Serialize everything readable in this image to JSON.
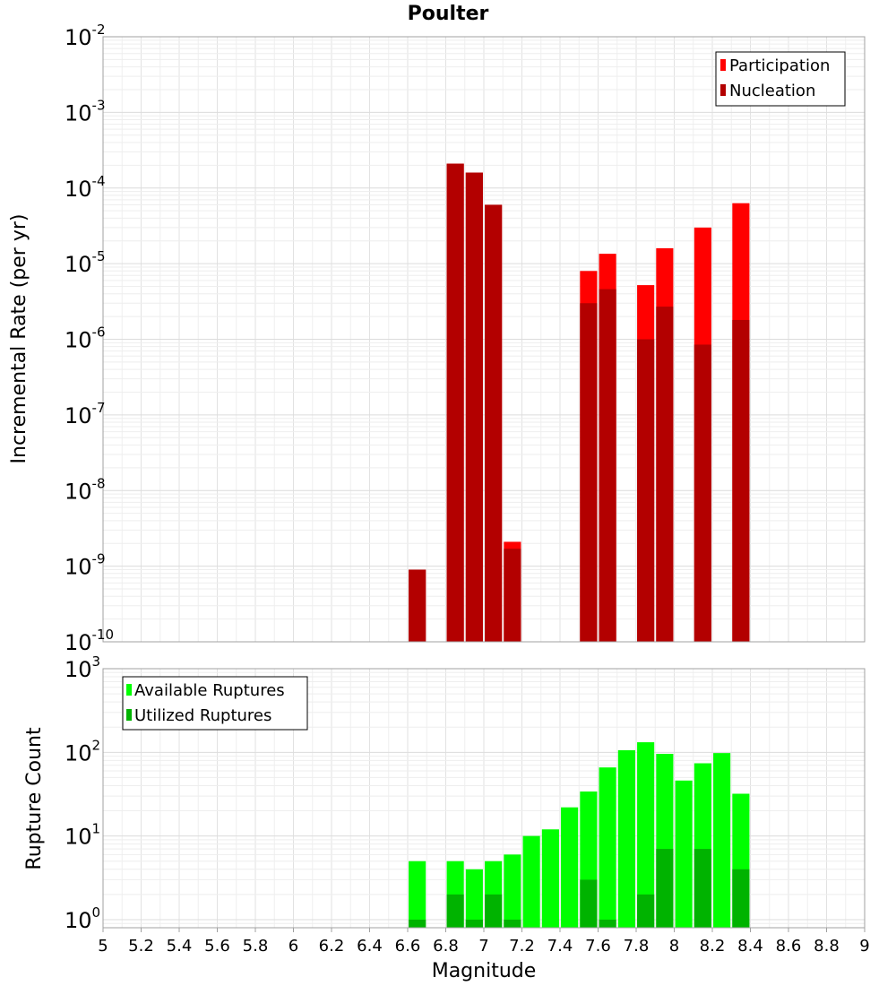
{
  "figure": {
    "title": "Poulter",
    "xlabel": "Magnitude"
  },
  "chart_data": [
    {
      "type": "bar",
      "ylabel": "Incremental Rate (per yr)",
      "yscale": "log",
      "ylim": [
        1e-10,
        0.01
      ],
      "xlim": [
        5,
        9
      ],
      "ytick_exponents": [
        -10,
        -9,
        -8,
        -7,
        -6,
        -5,
        -4,
        -3,
        -2
      ],
      "grid": true,
      "legend": "top-right",
      "bar_width": 0.09,
      "x": [
        6.65,
        6.85,
        6.95,
        7.05,
        7.15,
        7.55,
        7.65,
        7.85,
        7.95,
        8.15,
        8.35
      ],
      "series": [
        {
          "name": "Participation",
          "color": "#ff0000",
          "values": [
            9e-10,
            0.00021,
            0.00016,
            6e-05,
            2.1e-09,
            8e-06,
            1.35e-05,
            5.2e-06,
            1.6e-05,
            3e-05,
            6.3e-05
          ]
        },
        {
          "name": "Nucleation",
          "color": "#b30000",
          "values": [
            9e-10,
            0.00021,
            0.00016,
            6e-05,
            1.7e-09,
            3e-06,
            4.6e-06,
            1e-06,
            2.7e-06,
            8.5e-07,
            1.8e-06
          ]
        }
      ]
    },
    {
      "type": "bar",
      "ylabel": "Rupture Count",
      "yscale": "log",
      "ylim": [
        0.8,
        1000
      ],
      "xlim": [
        5,
        9
      ],
      "ytick_exponents": [
        0,
        1,
        2,
        3
      ],
      "xticks": [
        "5",
        "5.2",
        "5.4",
        "5.6",
        "5.8",
        "6",
        "6.2",
        "6.4",
        "6.6",
        "6.8",
        "7",
        "7.2",
        "7.4",
        "7.6",
        "7.8",
        "8",
        "8.2",
        "8.4",
        "8.6",
        "8.8",
        "9"
      ],
      "grid": true,
      "legend": "top-left",
      "bar_width": 0.09,
      "x": [
        6.65,
        6.85,
        6.95,
        7.05,
        7.15,
        7.25,
        7.35,
        7.45,
        7.55,
        7.65,
        7.75,
        7.85,
        7.95,
        8.05,
        8.15,
        8.25,
        8.35
      ],
      "series": [
        {
          "name": "Available Ruptures",
          "color": "#00ff00",
          "values": [
            5,
            5,
            4,
            5,
            6,
            10,
            12,
            22,
            34,
            66,
            106,
            132,
            96,
            46,
            74,
            98,
            32
          ]
        },
        {
          "name": "Utilized Ruptures",
          "color": "#00b300",
          "values": [
            1,
            2,
            1,
            2,
            1,
            0,
            0,
            0,
            3,
            1,
            0,
            2,
            7,
            0,
            7,
            0,
            4
          ]
        }
      ]
    }
  ]
}
